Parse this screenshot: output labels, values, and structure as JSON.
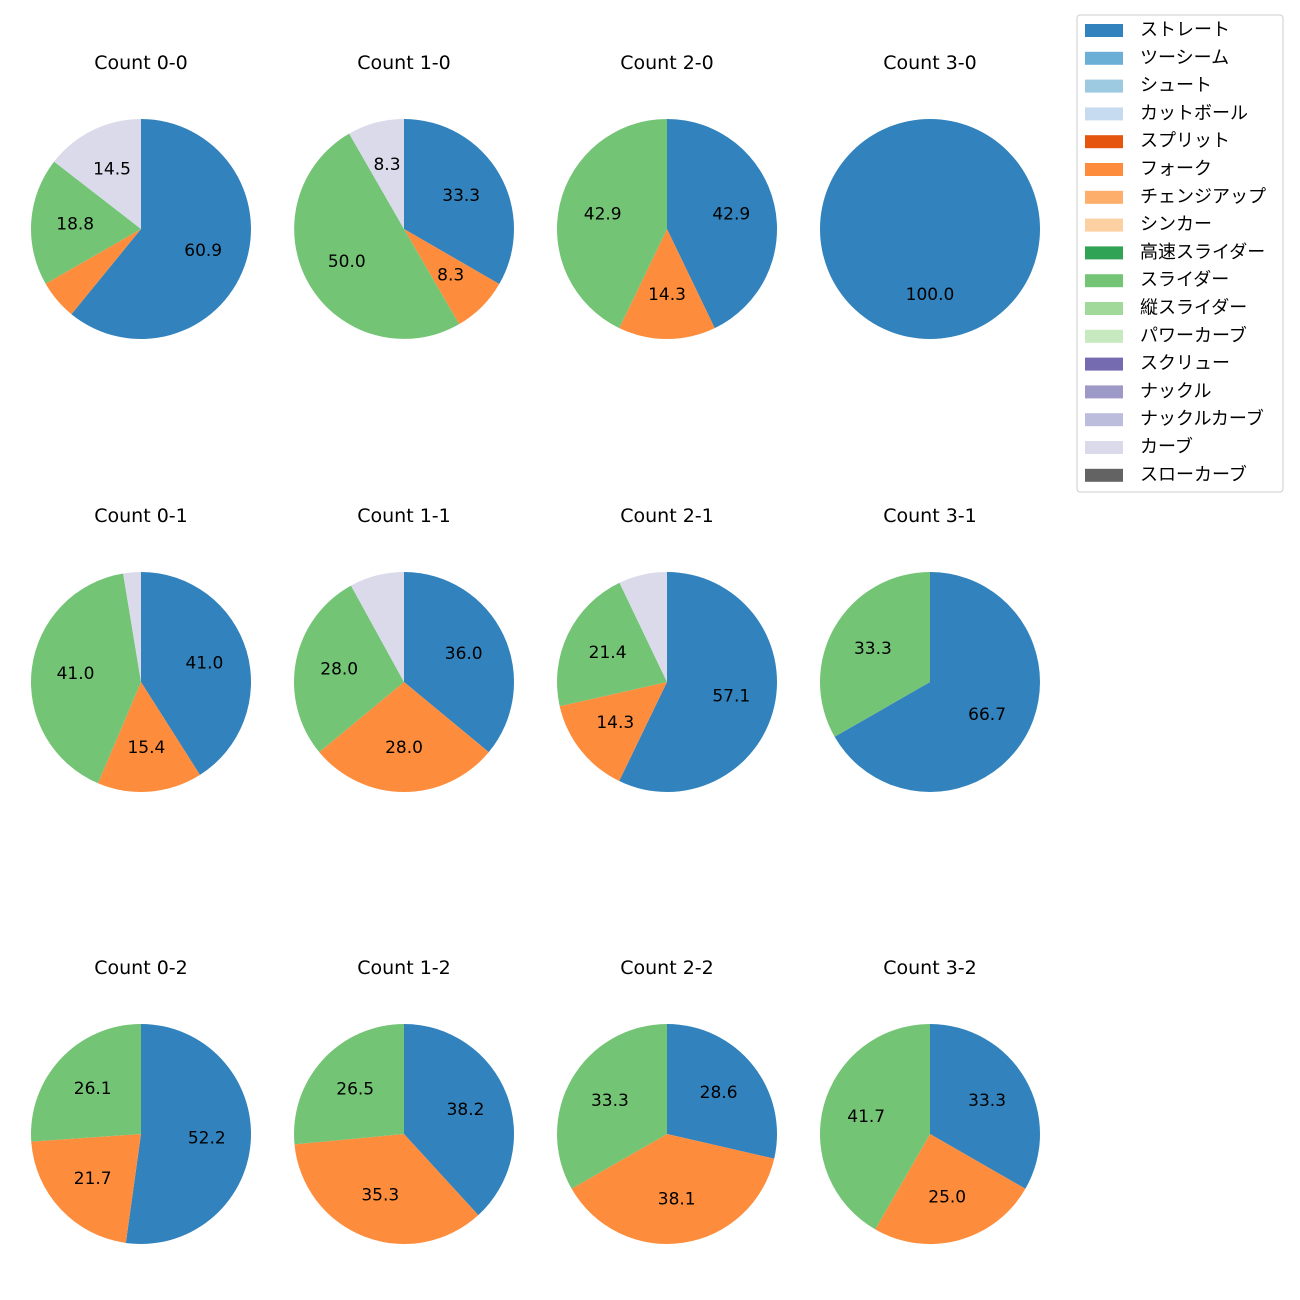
{
  "chart_data": {
    "type": "pie",
    "start_angle": "90 (top), clockwise",
    "label_format": "percent, 1 decimal",
    "pitch_types": [
      {
        "name": "ストレート",
        "color": "#3182bd"
      },
      {
        "name": "ツーシーム",
        "color": "#6baed6"
      },
      {
        "name": "シュート",
        "color": "#9ecae1"
      },
      {
        "name": "カットボール",
        "color": "#c6dbef"
      },
      {
        "name": "スプリット",
        "color": "#e6550d"
      },
      {
        "name": "フォーク",
        "color": "#fd8d3c"
      },
      {
        "name": "チェンジアップ",
        "color": "#fdae6b"
      },
      {
        "name": "シンカー",
        "color": "#fdd0a2"
      },
      {
        "name": "高速スライダー",
        "color": "#31a354"
      },
      {
        "name": "スライダー",
        "color": "#74c476"
      },
      {
        "name": "縦スライダー",
        "color": "#a1d99b"
      },
      {
        "name": "パワーカーブ",
        "color": "#c7e9c0"
      },
      {
        "name": "スクリュー",
        "color": "#756bb1"
      },
      {
        "name": "ナックル",
        "color": "#9e9ac8"
      },
      {
        "name": "ナックルカーブ",
        "color": "#bcbddc"
      },
      {
        "name": "カーブ",
        "color": "#dadaeb"
      },
      {
        "name": "スローカーブ",
        "color": "#636363"
      }
    ],
    "legend_position": "top-right",
    "charts": [
      {
        "title": "Count 0-0",
        "slices": [
          {
            "pitch": "ストレート",
            "value": 60.9,
            "label": "60.9"
          },
          {
            "pitch": "フォーク",
            "value": 5.8,
            "label": ""
          },
          {
            "pitch": "スライダー",
            "value": 18.8,
            "label": "18.8"
          },
          {
            "pitch": "カーブ",
            "value": 14.5,
            "label": "14.5"
          }
        ]
      },
      {
        "title": "Count 1-0",
        "slices": [
          {
            "pitch": "ストレート",
            "value": 33.3,
            "label": "33.3"
          },
          {
            "pitch": "フォーク",
            "value": 8.3,
            "label": "8.3"
          },
          {
            "pitch": "スライダー",
            "value": 50.0,
            "label": "50.0"
          },
          {
            "pitch": "カーブ",
            "value": 8.3,
            "label": "8.3"
          }
        ]
      },
      {
        "title": "Count 2-0",
        "slices": [
          {
            "pitch": "ストレート",
            "value": 42.9,
            "label": "42.9"
          },
          {
            "pitch": "フォーク",
            "value": 14.3,
            "label": "14.3"
          },
          {
            "pitch": "スライダー",
            "value": 42.9,
            "label": "42.9"
          }
        ]
      },
      {
        "title": "Count 3-0",
        "slices": [
          {
            "pitch": "ストレート",
            "value": 100.0,
            "label": "100.0"
          }
        ]
      },
      {
        "title": "Count 0-1",
        "slices": [
          {
            "pitch": "ストレート",
            "value": 41.0,
            "label": "41.0"
          },
          {
            "pitch": "フォーク",
            "value": 15.4,
            "label": "15.4"
          },
          {
            "pitch": "スライダー",
            "value": 41.0,
            "label": "41.0"
          },
          {
            "pitch": "カーブ",
            "value": 2.6,
            "label": ""
          }
        ]
      },
      {
        "title": "Count 1-1",
        "slices": [
          {
            "pitch": "ストレート",
            "value": 36.0,
            "label": "36.0"
          },
          {
            "pitch": "フォーク",
            "value": 28.0,
            "label": "28.0"
          },
          {
            "pitch": "スライダー",
            "value": 28.0,
            "label": "28.0"
          },
          {
            "pitch": "カーブ",
            "value": 8.0,
            "label": ""
          }
        ]
      },
      {
        "title": "Count 2-1",
        "slices": [
          {
            "pitch": "ストレート",
            "value": 57.1,
            "label": "57.1"
          },
          {
            "pitch": "フォーク",
            "value": 14.3,
            "label": "14.3"
          },
          {
            "pitch": "スライダー",
            "value": 21.4,
            "label": "21.4"
          },
          {
            "pitch": "カーブ",
            "value": 7.1,
            "label": ""
          }
        ]
      },
      {
        "title": "Count 3-1",
        "slices": [
          {
            "pitch": "ストレート",
            "value": 66.7,
            "label": "66.7"
          },
          {
            "pitch": "スライダー",
            "value": 33.3,
            "label": "33.3"
          }
        ]
      },
      {
        "title": "Count 0-2",
        "slices": [
          {
            "pitch": "ストレート",
            "value": 52.2,
            "label": "52.2"
          },
          {
            "pitch": "フォーク",
            "value": 21.7,
            "label": "21.7"
          },
          {
            "pitch": "スライダー",
            "value": 26.1,
            "label": "26.1"
          }
        ]
      },
      {
        "title": "Count 1-2",
        "slices": [
          {
            "pitch": "ストレート",
            "value": 38.2,
            "label": "38.2"
          },
          {
            "pitch": "フォーク",
            "value": 35.3,
            "label": "35.3"
          },
          {
            "pitch": "スライダー",
            "value": 26.5,
            "label": "26.5"
          }
        ]
      },
      {
        "title": "Count 2-2",
        "slices": [
          {
            "pitch": "ストレート",
            "value": 28.6,
            "label": "28.6"
          },
          {
            "pitch": "フォーク",
            "value": 38.1,
            "label": "38.1"
          },
          {
            "pitch": "スライダー",
            "value": 33.3,
            "label": "33.3"
          }
        ]
      },
      {
        "title": "Count 3-2",
        "slices": [
          {
            "pitch": "ストレート",
            "value": 33.3,
            "label": "33.3"
          },
          {
            "pitch": "フォーク",
            "value": 25.0,
            "label": "25.0"
          },
          {
            "pitch": "スライダー",
            "value": 41.7,
            "label": "41.7"
          }
        ]
      }
    ]
  }
}
